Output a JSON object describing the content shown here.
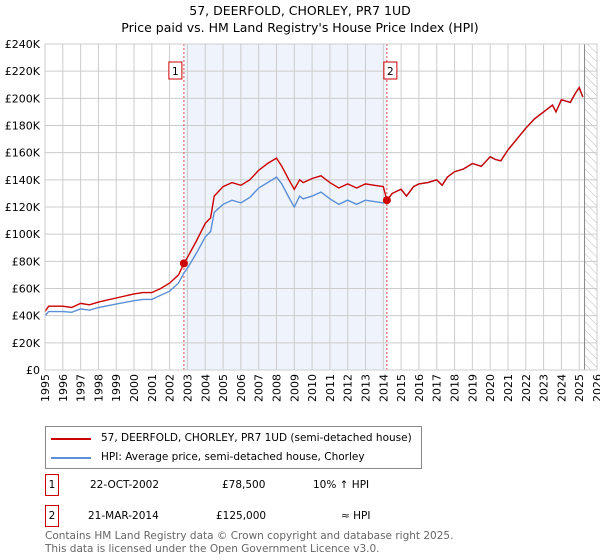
{
  "title": "57, DEERFOLD, CHORLEY, PR7 1UD",
  "subtitle": "Price paid vs. HM Land Registry's House Price Index (HPI)",
  "chart_data": {
    "type": "line",
    "title": "57, DEERFOLD, CHORLEY, PR7 1UD",
    "subtitle": "Price paid vs. HM Land Registry's House Price Index (HPI)",
    "xlim": [
      1995,
      2026
    ],
    "ylim": [
      0,
      240000
    ],
    "x_ticks": [
      "1995",
      "1996",
      "1997",
      "1998",
      "1999",
      "2000",
      "2001",
      "2002",
      "2003",
      "2004",
      "2005",
      "2006",
      "2007",
      "2008",
      "2009",
      "2010",
      "2011",
      "2012",
      "2013",
      "2014",
      "2015",
      "2016",
      "2017",
      "2018",
      "2019",
      "2020",
      "2021",
      "2022",
      "2023",
      "2024",
      "2025",
      "2026"
    ],
    "y_ticks": [
      {
        "v": 0,
        "l": "£0"
      },
      {
        "v": 20000,
        "l": "£20K"
      },
      {
        "v": 40000,
        "l": "£40K"
      },
      {
        "v": 60000,
        "l": "£60K"
      },
      {
        "v": 80000,
        "l": "£80K"
      },
      {
        "v": 100000,
        "l": "£100K"
      },
      {
        "v": 120000,
        "l": "£120K"
      },
      {
        "v": 140000,
        "l": "£140K"
      },
      {
        "v": 160000,
        "l": "£160K"
      },
      {
        "v": 180000,
        "l": "£180K"
      },
      {
        "v": 200000,
        "l": "£200K"
      },
      {
        "v": 220000,
        "l": "£220K"
      },
      {
        "v": 240000,
        "l": "£240K"
      }
    ],
    "grid": true,
    "shaded_range": [
      2002.8,
      2014.2
    ],
    "forecast_hatch_from": 2025.3,
    "series": [
      {
        "name": "57, DEERFOLD, CHORLEY, PR7 1UD (semi-detached house)",
        "color": "#cc0000",
        "x": [
          1995,
          1995.2,
          1996,
          1996.5,
          1997,
          1997.5,
          1998,
          1999,
          2000,
          2000.5,
          2001,
          2001.5,
          2002,
          2002.5,
          2002.8,
          2003,
          2003.5,
          2004,
          2004.3,
          2004.5,
          2005,
          2005.5,
          2006,
          2006.5,
          2007,
          2007.5,
          2008,
          2008.3,
          2008.7,
          2009,
          2009.3,
          2009.5,
          2010,
          2010.5,
          2011,
          2011.5,
          2012,
          2012.5,
          2013,
          2013.5,
          2014,
          2014.2,
          2014.5,
          2015,
          2015.3,
          2015.7,
          2016,
          2016.5,
          2017,
          2017.3,
          2017.6,
          2018,
          2018.5,
          2019,
          2019.5,
          2020,
          2020.3,
          2020.6,
          2021,
          2021.5,
          2022,
          2022.5,
          2023,
          2023.5,
          2023.7,
          2024,
          2024.5,
          2024.8,
          2025,
          2025.2
        ],
        "y": [
          43000,
          47000,
          47000,
          46000,
          49000,
          48000,
          50000,
          53000,
          56000,
          57000,
          57000,
          60000,
          64000,
          70000,
          78500,
          83000,
          95000,
          108000,
          112000,
          128000,
          135000,
          138000,
          136000,
          140000,
          147000,
          152000,
          156000,
          150000,
          140000,
          133000,
          140000,
          138000,
          141000,
          143000,
          138000,
          134000,
          137000,
          134000,
          137000,
          136000,
          135000,
          125000,
          130000,
          133000,
          128000,
          135000,
          137000,
          138000,
          140000,
          136000,
          142000,
          146000,
          148000,
          152000,
          150000,
          157000,
          155000,
          154000,
          162000,
          170000,
          178000,
          185000,
          190000,
          195000,
          190000,
          199000,
          197000,
          204000,
          208000,
          201000
        ]
      },
      {
        "name": "HPI: Average price, semi-detached house, Chorley",
        "color": "#5b8fd6",
        "x": [
          1995,
          1995.2,
          1996,
          1996.5,
          1997,
          1997.5,
          1998,
          1999,
          2000,
          2000.5,
          2001,
          2001.5,
          2002,
          2002.5,
          2002.8,
          2003,
          2003.5,
          2004,
          2004.3,
          2004.5,
          2005,
          2005.5,
          2006,
          2006.5,
          2007,
          2007.5,
          2008,
          2008.3,
          2008.7,
          2009,
          2009.3,
          2009.5,
          2010,
          2010.5,
          2011,
          2011.5,
          2012,
          2012.5,
          2013,
          2013.5,
          2014,
          2014.2,
          2014.5,
          2015,
          2015.3,
          2015.7,
          2016,
          2016.5,
          2017,
          2017.3,
          2017.6,
          2018,
          2018.5,
          2019,
          2019.5,
          2020,
          2020.3,
          2020.6,
          2021,
          2021.5,
          2022,
          2022.5,
          2023,
          2023.5,
          2023.7,
          2024,
          2024.5,
          2024.8,
          2025,
          2025.2
        ],
        "y": [
          40000,
          43000,
          43000,
          42500,
          45000,
          44000,
          46000,
          48500,
          51000,
          52000,
          52000,
          55000,
          58000,
          64000,
          71400,
          75000,
          86000,
          98000,
          102000,
          116000,
          122000,
          125000,
          123000,
          127000,
          134000,
          138000,
          142000,
          137000,
          127000,
          120000,
          128000,
          126000,
          128000,
          131000,
          126000,
          122000,
          125000,
          122000,
          125000,
          124000,
          123000,
          124000,
          130000,
          133000,
          128000,
          135000,
          137000,
          138000,
          140000,
          136000,
          142000,
          146000,
          148000,
          152000,
          150000,
          157000,
          155000,
          154000,
          162000,
          170000,
          178000,
          185000,
          190000,
          195000,
          190000,
          199000,
          197000,
          204000,
          208000,
          201000
        ]
      }
    ],
    "sales": [
      {
        "label": "1",
        "x": 2002.8,
        "y": 78500
      },
      {
        "label": "2",
        "x": 2014.2,
        "y": 125000
      }
    ]
  },
  "legend": {
    "price": "57, DEERFOLD, CHORLEY, PR7 1UD (semi-detached house)",
    "hpi": "HPI: Average price, semi-detached house, Chorley"
  },
  "transactions": [
    {
      "num": "1",
      "date": "22-OCT-2002",
      "price": "£78,500",
      "hpi": "10% ↑ HPI"
    },
    {
      "num": "2",
      "date": "21-MAR-2014",
      "price": "£125,000",
      "hpi": "≈ HPI"
    }
  ],
  "footer": [
    "Contains HM Land Registry data © Crown copyright and database right 2025.",
    "This data is licensed under the Open Government Licence v3.0."
  ]
}
